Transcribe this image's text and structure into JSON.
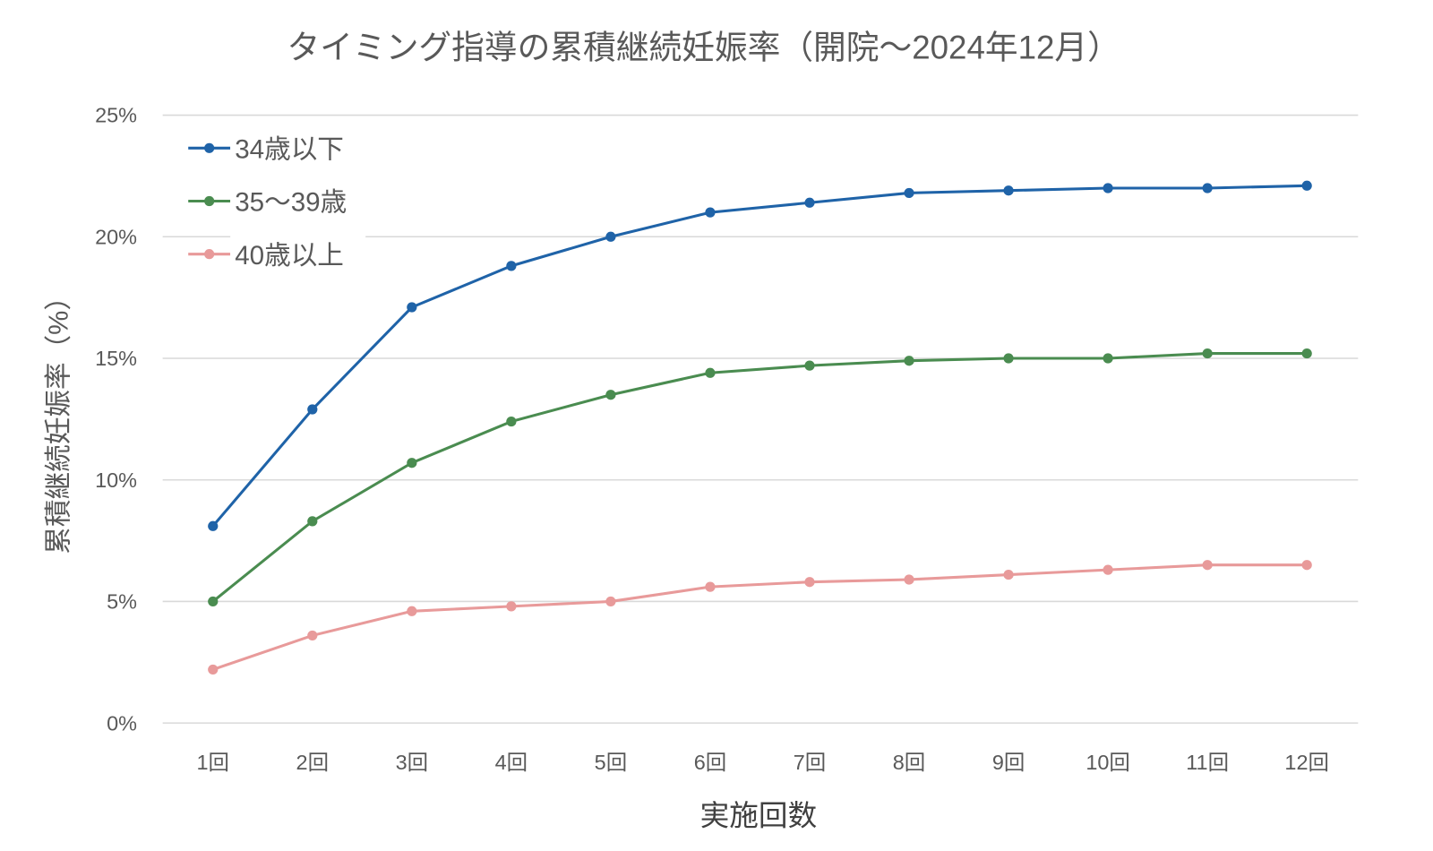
{
  "chart_data": {
    "type": "line",
    "title": "タイミング指導の累積継続妊娠率（開院〜2024年12月）",
    "xlabel": "実施回数",
    "ylabel": "累積継続妊娠率（%）",
    "categories": [
      "1回",
      "2回",
      "3回",
      "4回",
      "5回",
      "6回",
      "7回",
      "8回",
      "9回",
      "10回",
      "11回",
      "12回"
    ],
    "ylim": [
      0,
      25
    ],
    "yticks": [
      "0%",
      "5%",
      "10%",
      "15%",
      "20%",
      "25%"
    ],
    "ytick_values": [
      0,
      5,
      10,
      15,
      20,
      25
    ],
    "grid": true,
    "legend_position": "top-left",
    "series": [
      {
        "name": "34歳以下",
        "color": "#1f63a8",
        "values": [
          8.1,
          12.9,
          17.1,
          18.8,
          20.0,
          21.0,
          21.4,
          21.8,
          21.9,
          22.0,
          22.0,
          22.1
        ]
      },
      {
        "name": "35〜39歳",
        "color": "#4a8c50",
        "values": [
          5.0,
          8.3,
          10.7,
          12.4,
          13.5,
          14.4,
          14.7,
          14.9,
          15.0,
          15.0,
          15.2,
          15.2
        ]
      },
      {
        "name": "40歳以上",
        "color": "#e89a9a",
        "values": [
          2.2,
          3.6,
          4.6,
          4.8,
          5.0,
          5.6,
          5.8,
          5.9,
          6.1,
          6.3,
          6.5,
          6.5
        ]
      }
    ]
  }
}
